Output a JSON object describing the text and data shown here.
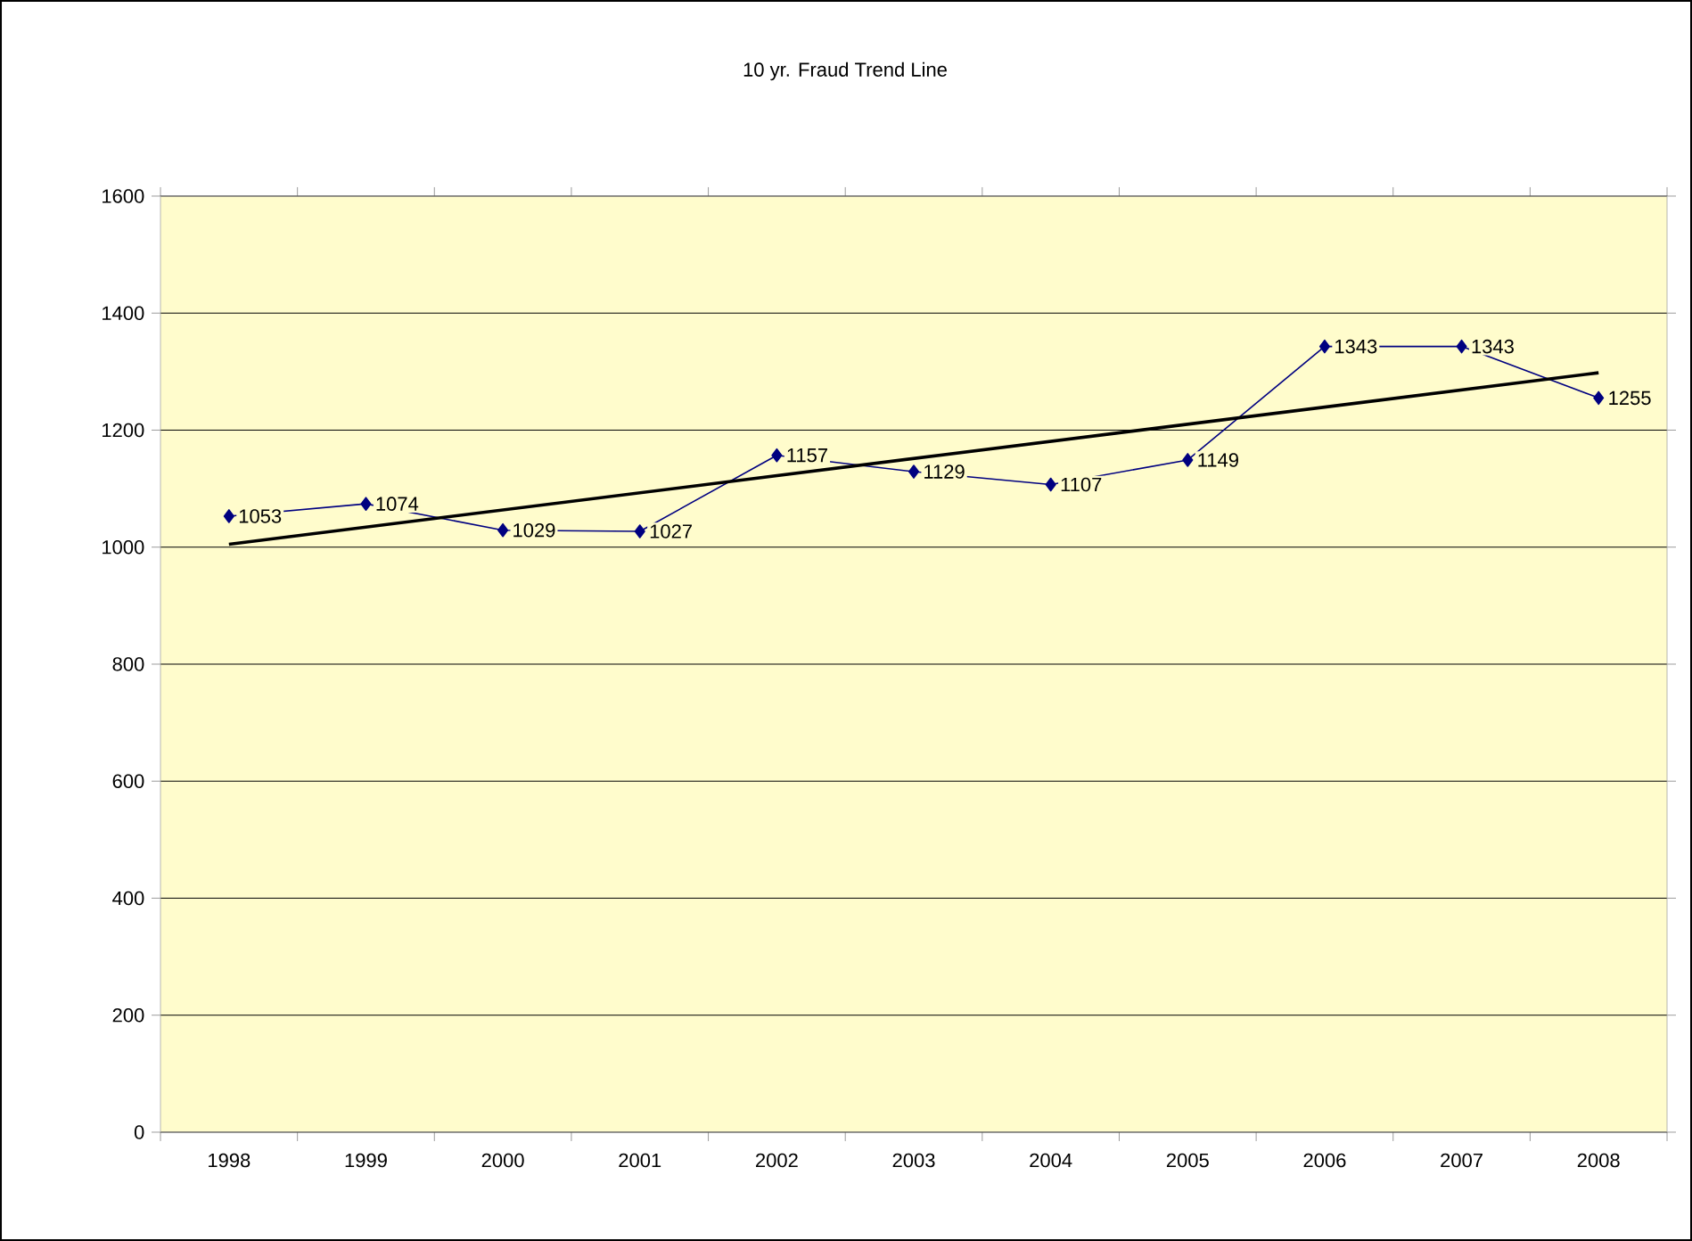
{
  "chart_data": {
    "type": "line",
    "title": "10 yr. Fraud Trend Line",
    "categories": [
      "1998",
      "1999",
      "2000",
      "2001",
      "2002",
      "2003",
      "2004",
      "2005",
      "2006",
      "2007",
      "2008"
    ],
    "series": [
      {
        "color": "#000080",
        "marker": "diamond",
        "values": [
          1053,
          1074,
          1029,
          1027,
          1157,
          1129,
          1107,
          1149,
          1343,
          1343,
          1255
        ],
        "value_labels": [
          "1053",
          "1074",
          "1029",
          "1027",
          "1157",
          "1129",
          "1107",
          "1149",
          "1343",
          "1343",
          "1255"
        ]
      },
      {
        "type": "line",
        "color": "#000000",
        "marker": "none",
        "values": [
          1005,
          null,
          null,
          null,
          null,
          null,
          null,
          null,
          null,
          null,
          1298
        ]
      }
    ],
    "ylim": [
      0,
      1600
    ],
    "yticks": [
      0,
      200,
      400,
      600,
      800,
      1000,
      1200,
      1400,
      1600
    ],
    "grid": "y"
  }
}
